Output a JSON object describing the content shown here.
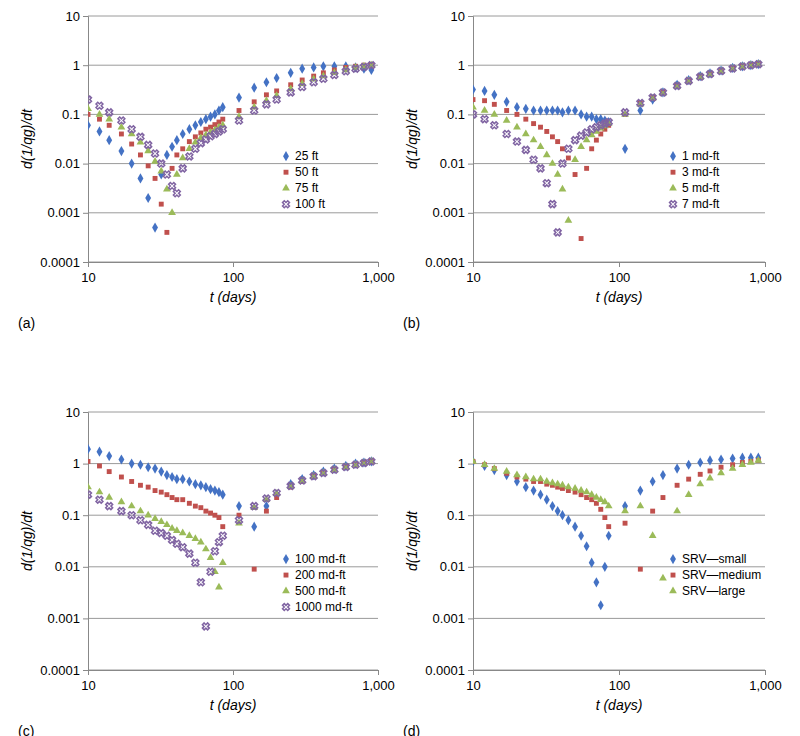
{
  "chart_data": [
    {
      "type": "scatter",
      "title": "(a)",
      "xlabel": "t (days)",
      "ylabel": "d(1/qg)/dt",
      "log": true,
      "grid": true,
      "legend": "lower right",
      "xlim": [
        10,
        1000
      ],
      "ylim": [
        0.0001,
        10
      ],
      "xticks": [
        10,
        100,
        {
          "value": 1000,
          "label": "1,000"
        }
      ],
      "yticks": [
        0.0001,
        0.001,
        0.01,
        0.1,
        1,
        10
      ],
      "x": [
        10,
        12,
        14,
        17,
        20,
        23,
        26,
        29,
        32,
        35,
        38,
        41,
        45,
        50,
        55,
        60,
        65,
        70,
        75,
        80,
        85,
        110,
        140,
        170,
        200,
        250,
        300,
        360,
        420,
        500,
        600,
        700,
        800,
        900
      ],
      "series": [
        {
          "name": "25 ft",
          "color": "#4472c4",
          "marker": "diamond",
          "values": [
            0.06,
            0.045,
            0.03,
            0.018,
            0.01,
            0.005,
            0.002,
            0.0005,
            0.006,
            0.015,
            0.022,
            0.03,
            0.04,
            0.05,
            0.06,
            0.07,
            0.08,
            0.09,
            0.1,
            0.12,
            0.14,
            0.22,
            0.35,
            0.45,
            0.55,
            0.7,
            0.85,
            0.9,
            0.95,
            0.95,
            0.95,
            0.9,
            0.85,
            0.8
          ]
        },
        {
          "name": "50 ft",
          "color": "#c0504d",
          "marker": "square",
          "values": [
            0.1,
            0.08,
            0.06,
            0.04,
            0.025,
            0.015,
            0.009,
            0.005,
            0.0015,
            0.0004,
            0.008,
            0.015,
            0.02,
            0.028,
            0.035,
            0.042,
            0.05,
            0.055,
            0.062,
            0.07,
            0.08,
            0.12,
            0.18,
            0.25,
            0.3,
            0.4,
            0.5,
            0.6,
            0.7,
            0.8,
            0.9,
            0.95,
            1.0,
            1.0
          ]
        },
        {
          "name": "75 ft",
          "color": "#9bbb59",
          "marker": "triangle",
          "values": [
            0.13,
            0.1,
            0.08,
            0.055,
            0.04,
            0.027,
            0.018,
            0.011,
            0.007,
            0.003,
            0.001,
            0.006,
            0.013,
            0.02,
            0.027,
            0.033,
            0.038,
            0.043,
            0.048,
            0.055,
            0.06,
            0.09,
            0.14,
            0.19,
            0.24,
            0.33,
            0.42,
            0.52,
            0.6,
            0.7,
            0.8,
            0.9,
            0.95,
            1.0
          ]
        },
        {
          "name": "100 ft",
          "color": "#8064a2",
          "marker": "cross",
          "values": [
            0.2,
            0.15,
            0.11,
            0.075,
            0.05,
            0.035,
            0.024,
            0.016,
            0.01,
            0.006,
            0.0035,
            0.0025,
            0.008,
            0.014,
            0.02,
            0.026,
            0.031,
            0.036,
            0.04,
            0.045,
            0.05,
            0.075,
            0.12,
            0.16,
            0.2,
            0.28,
            0.36,
            0.45,
            0.53,
            0.63,
            0.75,
            0.85,
            0.92,
            1.0
          ]
        }
      ]
    },
    {
      "type": "scatter",
      "title": "(b)",
      "xlabel": "t (days)",
      "ylabel": "d(1/qg)/dt",
      "log": true,
      "grid": true,
      "legend": "lower right",
      "xlim": [
        10,
        1000
      ],
      "ylim": [
        0.0001,
        10
      ],
      "xticks": [
        10,
        100,
        {
          "value": 1000,
          "label": "1,000"
        }
      ],
      "yticks": [
        0.0001,
        0.001,
        0.01,
        0.1,
        1,
        10
      ],
      "x": [
        10,
        12,
        14,
        17,
        20,
        23,
        26,
        29,
        32,
        35,
        38,
        41,
        45,
        50,
        55,
        60,
        65,
        70,
        75,
        80,
        85,
        110,
        140,
        170,
        200,
        250,
        300,
        360,
        420,
        500,
        600,
        700,
        800,
        900
      ],
      "series": [
        {
          "name": "1 md-ft",
          "color": "#4472c4",
          "marker": "diamond",
          "values": [
            0.32,
            0.3,
            0.25,
            0.18,
            0.14,
            0.13,
            0.12,
            0.12,
            0.12,
            0.12,
            0.12,
            0.11,
            0.12,
            0.12,
            0.1,
            0.09,
            0.09,
            0.08,
            0.08,
            0.075,
            0.07,
            0.02,
            0.12,
            0.2,
            0.28,
            0.4,
            0.5,
            0.6,
            0.68,
            0.78,
            0.88,
            0.95,
            1.0,
            1.05
          ]
        },
        {
          "name": "3 md-ft",
          "color": "#c0504d",
          "marker": "square",
          "values": [
            0.2,
            0.19,
            0.16,
            0.12,
            0.1,
            0.08,
            0.065,
            0.055,
            0.045,
            0.035,
            0.028,
            0.02,
            0.013,
            0.006,
            0.0003,
            0.008,
            0.02,
            0.03,
            0.04,
            0.05,
            0.06,
            0.1,
            0.17,
            0.22,
            0.28,
            0.38,
            0.48,
            0.58,
            0.66,
            0.76,
            0.86,
            0.94,
            1.0,
            1.05
          ]
        },
        {
          "name": "5 md-ft",
          "color": "#9bbb59",
          "marker": "triangle",
          "values": [
            0.14,
            0.12,
            0.1,
            0.075,
            0.055,
            0.04,
            0.03,
            0.022,
            0.015,
            0.01,
            0.006,
            0.003,
            0.0007,
            0.012,
            0.022,
            0.03,
            0.038,
            0.045,
            0.052,
            0.058,
            0.065,
            0.1,
            0.16,
            0.21,
            0.27,
            0.37,
            0.47,
            0.57,
            0.65,
            0.75,
            0.85,
            0.93,
            1.0,
            1.05
          ]
        },
        {
          "name": "7 md-ft",
          "color": "#8064a2",
          "marker": "cross",
          "values": [
            0.1,
            0.08,
            0.06,
            0.04,
            0.028,
            0.019,
            0.012,
            0.008,
            0.004,
            0.0015,
            0.0004,
            0.01,
            0.02,
            0.03,
            0.037,
            0.043,
            0.05,
            0.055,
            0.06,
            0.065,
            0.07,
            0.11,
            0.17,
            0.22,
            0.28,
            0.38,
            0.48,
            0.58,
            0.66,
            0.76,
            0.86,
            0.94,
            1.0,
            1.05
          ]
        }
      ]
    },
    {
      "type": "scatter",
      "title": "(c)",
      "xlabel": "t (days)",
      "ylabel": "d(1/qg)/dt",
      "log": true,
      "grid": true,
      "legend": "lower right",
      "xlim": [
        10,
        1000
      ],
      "ylim": [
        0.0001,
        10
      ],
      "xticks": [
        10,
        100,
        {
          "value": 1000,
          "label": "1,000"
        }
      ],
      "yticks": [
        0.0001,
        0.001,
        0.01,
        0.1,
        1,
        10
      ],
      "x": [
        10,
        12,
        14,
        17,
        20,
        23,
        26,
        29,
        32,
        35,
        38,
        41,
        45,
        50,
        55,
        60,
        65,
        70,
        75,
        80,
        85,
        110,
        140,
        170,
        200,
        250,
        300,
        360,
        420,
        500,
        600,
        700,
        800,
        900
      ],
      "series": [
        {
          "name": "100 md-ft",
          "color": "#4472c4",
          "marker": "diamond",
          "values": [
            1.9,
            1.7,
            1.4,
            1.2,
            1.0,
            0.95,
            0.85,
            0.8,
            0.7,
            0.6,
            0.55,
            0.5,
            0.5,
            0.45,
            0.4,
            0.38,
            0.35,
            0.32,
            0.3,
            0.28,
            0.25,
            0.15,
            0.06,
            0.15,
            0.25,
            0.4,
            0.5,
            0.6,
            0.7,
            0.8,
            0.9,
            1.0,
            1.05,
            1.1
          ]
        },
        {
          "name": "200 md-ft",
          "color": "#c0504d",
          "marker": "square",
          "values": [
            1.1,
            0.9,
            0.7,
            0.55,
            0.45,
            0.38,
            0.35,
            0.3,
            0.28,
            0.25,
            0.22,
            0.2,
            0.2,
            0.17,
            0.15,
            0.14,
            0.12,
            0.11,
            0.1,
            0.09,
            0.06,
            0.1,
            0.009,
            0.12,
            0.22,
            0.35,
            0.45,
            0.56,
            0.66,
            0.76,
            0.86,
            0.95,
            1.05,
            1.1
          ]
        },
        {
          "name": "500 md-ft",
          "color": "#9bbb59",
          "marker": "triangle",
          "values": [
            0.35,
            0.28,
            0.22,
            0.18,
            0.15,
            0.12,
            0.1,
            0.085,
            0.075,
            0.065,
            0.055,
            0.05,
            0.045,
            0.04,
            0.035,
            0.03,
            0.022,
            0.015,
            0.008,
            0.004,
            0.012,
            0.07,
            0.14,
            0.2,
            0.26,
            0.36,
            0.46,
            0.56,
            0.65,
            0.75,
            0.85,
            0.94,
            1.02,
            1.1
          ]
        },
        {
          "name": "1000 md-ft",
          "color": "#8064a2",
          "marker": "cross",
          "values": [
            0.25,
            0.2,
            0.15,
            0.12,
            0.1,
            0.08,
            0.065,
            0.05,
            0.045,
            0.04,
            0.033,
            0.028,
            0.024,
            0.018,
            0.012,
            0.005,
            0.0007,
            0.008,
            0.02,
            0.03,
            0.04,
            0.08,
            0.15,
            0.21,
            0.27,
            0.37,
            0.47,
            0.57,
            0.66,
            0.76,
            0.86,
            0.95,
            1.03,
            1.1
          ]
        }
      ]
    },
    {
      "type": "scatter",
      "title": "(d)",
      "xlabel": "t (days)",
      "ylabel": "d(1/qg)/dt",
      "log": true,
      "grid": true,
      "legend": "lower right",
      "xlim": [
        10,
        1000
      ],
      "ylim": [
        0.0001,
        10
      ],
      "xticks": [
        10,
        100,
        {
          "value": 1000,
          "label": "1,000"
        }
      ],
      "yticks": [
        0.0001,
        0.001,
        0.01,
        0.1,
        1,
        10
      ],
      "x": [
        10,
        12,
        14,
        17,
        20,
        23,
        26,
        29,
        32,
        35,
        38,
        41,
        45,
        50,
        55,
        60,
        65,
        70,
        75,
        80,
        85,
        110,
        140,
        170,
        200,
        250,
        300,
        360,
        420,
        500,
        600,
        700,
        800,
        900
      ],
      "series": [
        {
          "name": "SRV—small",
          "color": "#4472c4",
          "marker": "diamond",
          "values": [
            1.1,
            0.9,
            0.75,
            0.6,
            0.45,
            0.35,
            0.3,
            0.25,
            0.2,
            0.15,
            0.12,
            0.1,
            0.08,
            0.06,
            0.04,
            0.025,
            0.012,
            0.005,
            0.0018,
            0.01,
            0.04,
            0.15,
            0.3,
            0.45,
            0.6,
            0.8,
            0.95,
            1.05,
            1.15,
            1.2,
            1.25,
            1.3,
            1.3,
            1.3
          ]
        },
        {
          "name": "SRV—medium",
          "color": "#c0504d",
          "marker": "square",
          "values": [
            1.1,
            0.95,
            0.8,
            0.65,
            0.55,
            0.5,
            0.45,
            0.45,
            0.4,
            0.38,
            0.35,
            0.33,
            0.3,
            0.28,
            0.25,
            0.22,
            0.2,
            0.17,
            0.13,
            0.09,
            0.06,
            0.07,
            0.009,
            0.12,
            0.22,
            0.38,
            0.5,
            0.62,
            0.72,
            0.85,
            0.95,
            1.05,
            1.1,
            1.15
          ]
        },
        {
          "name": "SRV—large",
          "color": "#9bbb59",
          "marker": "triangle",
          "values": [
            1.1,
            0.95,
            0.8,
            0.7,
            0.6,
            0.55,
            0.5,
            0.5,
            0.45,
            0.42,
            0.4,
            0.38,
            0.35,
            0.33,
            0.3,
            0.28,
            0.25,
            0.22,
            0.2,
            0.18,
            0.15,
            0.12,
            0.15,
            0.04,
            0.006,
            0.12,
            0.25,
            0.4,
            0.52,
            0.66,
            0.8,
            0.95,
            1.05,
            1.15
          ]
        }
      ]
    }
  ]
}
